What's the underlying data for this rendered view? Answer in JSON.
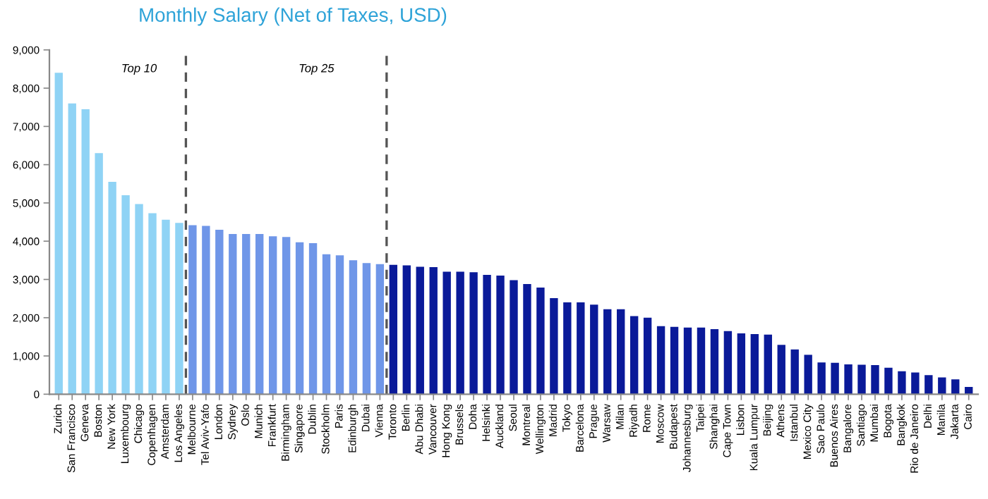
{
  "chart_data": {
    "type": "bar",
    "title": "Monthly Salary (Net of Taxes, USD)",
    "categories": [
      "Zurich",
      "San Francisco",
      "Geneva",
      "Boston",
      "New York",
      "Luxembourg",
      "Chicago",
      "Copenhagen",
      "Amsterdam",
      "Los Angeles",
      "Melbourne",
      "Tel Aviv-Yafo",
      "London",
      "Sydney",
      "Oslo",
      "Munich",
      "Frankfurt",
      "Birmingham",
      "Singapore",
      "Dublin",
      "Stockholm",
      "Paris",
      "Edinburgh",
      "Dubai",
      "Vienna",
      "Toronto",
      "Berlin",
      "Abu Dhabi",
      "Vancouver",
      "Hong Kong",
      "Brussels",
      "Doha",
      "Helsinki",
      "Auckland",
      "Seoul",
      "Montreal",
      "Wellington",
      "Madrid",
      "Tokyo",
      "Barcelona",
      "Prague",
      "Warsaw",
      "Milan",
      "Riyadh",
      "Rome",
      "Moscow",
      "Budapest",
      "Johannesburg",
      "Taipei",
      "Shanghai",
      "Cape Town",
      "Lisbon",
      "Kuala Lumpur",
      "Beijing",
      "Athens",
      "Istanbul",
      "Mexico City",
      "Sao Paulo",
      "Buenos Aires",
      "Bangalore",
      "Santiago",
      "Mumbai",
      "Bogota",
      "Bangkok",
      "Rio de Janeiro",
      "Delhi",
      "Manila",
      "Jakarta",
      "Cairo"
    ],
    "values": [
      8400,
      7600,
      7450,
      6300,
      5550,
      5200,
      4970,
      4730,
      4560,
      4480,
      4420,
      4400,
      4300,
      4190,
      4190,
      4190,
      4130,
      4110,
      3970,
      3950,
      3660,
      3630,
      3500,
      3430,
      3400,
      3380,
      3370,
      3330,
      3320,
      3200,
      3200,
      3190,
      3120,
      3100,
      2980,
      2880,
      2790,
      2510,
      2400,
      2400,
      2340,
      2220,
      2220,
      2040,
      2000,
      1780,
      1760,
      1740,
      1740,
      1700,
      1650,
      1590,
      1570,
      1560,
      1290,
      1170,
      1030,
      830,
      820,
      780,
      770,
      760,
      690,
      600,
      570,
      500,
      440,
      390,
      190
    ],
    "colors": [
      "#8fd3f5",
      "#8fd3f5",
      "#8fd3f5",
      "#8fd3f5",
      "#8fd3f5",
      "#8fd3f5",
      "#8fd3f5",
      "#8fd3f5",
      "#8fd3f5",
      "#8fd3f5",
      "#6f96e8",
      "#6f96e8",
      "#6f96e8",
      "#6f96e8",
      "#6f96e8",
      "#6f96e8",
      "#6f96e8",
      "#6f96e8",
      "#6f96e8",
      "#6f96e8",
      "#6f96e8",
      "#6f96e8",
      "#6f96e8",
      "#6f96e8",
      "#6f96e8",
      "#0a1a99",
      "#0a1a99",
      "#0a1a99",
      "#0a1a99",
      "#0a1a99",
      "#0a1a99",
      "#0a1a99",
      "#0a1a99",
      "#0a1a99",
      "#0a1a99",
      "#0a1a99",
      "#0a1a99",
      "#0a1a99",
      "#0a1a99",
      "#0a1a99",
      "#0a1a99",
      "#0a1a99",
      "#0a1a99",
      "#0a1a99",
      "#0a1a99",
      "#0a1a99",
      "#0a1a99",
      "#0a1a99",
      "#0a1a99",
      "#0a1a99",
      "#0a1a99",
      "#0a1a99",
      "#0a1a99",
      "#0a1a99",
      "#0a1a99",
      "#0a1a99",
      "#0a1a99",
      "#0a1a99",
      "#0a1a99",
      "#0a1a99",
      "#0a1a99",
      "#0a1a99",
      "#0a1a99",
      "#0a1a99",
      "#0a1a99",
      "#0a1a99",
      "#0a1a99",
      "#0a1a99",
      "#0a1a99"
    ],
    "ylim": [
      0,
      9000
    ],
    "yticks": [
      {
        "value": 0,
        "label": "0"
      },
      {
        "value": 1000,
        "label": "1,000"
      },
      {
        "value": 2000,
        "label": "2,000"
      },
      {
        "value": 3000,
        "label": "3,000"
      },
      {
        "value": 4000,
        "label": "4,000"
      },
      {
        "value": 5000,
        "label": "5,000"
      },
      {
        "value": 6000,
        "label": "6,000"
      },
      {
        "value": 7000,
        "label": "7,000"
      },
      {
        "value": 8000,
        "label": "8,000"
      },
      {
        "value": 9000,
        "label": "9,000"
      }
    ],
    "annotations": [
      "Top 10",
      "Top 25"
    ],
    "grid": false,
    "legend": false
  }
}
